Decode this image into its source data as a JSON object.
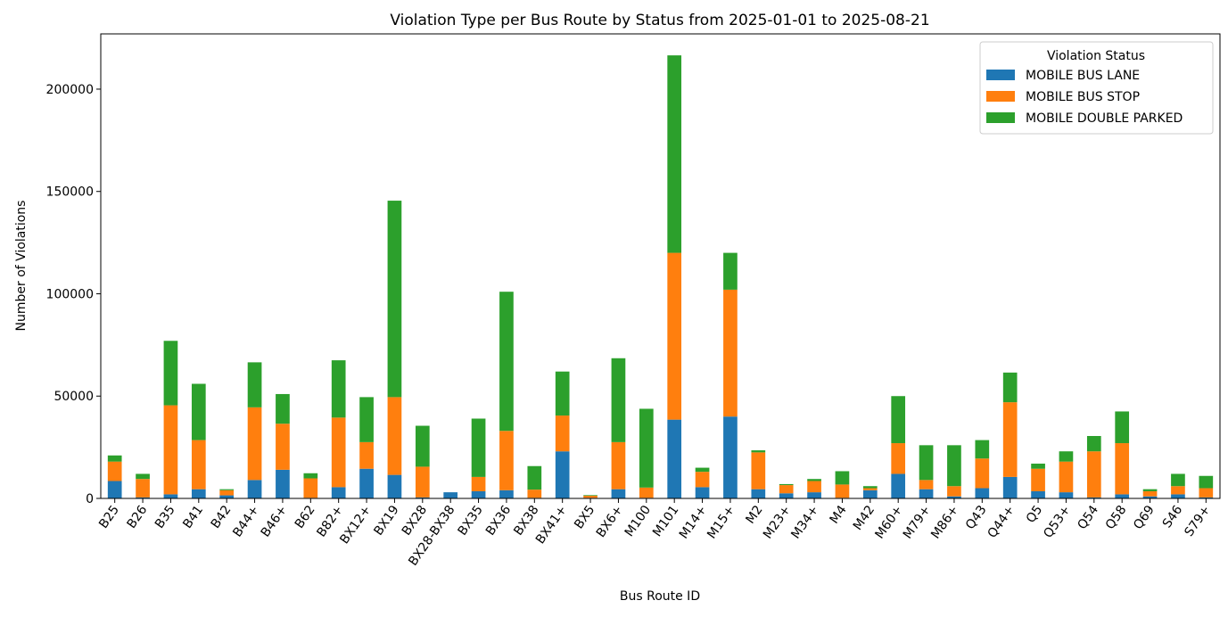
{
  "chart_data": {
    "type": "bar",
    "stacked": true,
    "title": "Violation Type per Bus Route by Status from 2025-01-01 to 2025-08-21",
    "xlabel": "Bus Route ID",
    "ylabel": "Number of Violations",
    "ylim": [
      0,
      227000
    ],
    "yticks": [
      0,
      50000,
      100000,
      150000,
      200000
    ],
    "ytick_labels": [
      "0",
      "50000",
      "100000",
      "150000",
      "200000"
    ],
    "grid": false,
    "legend": {
      "title": "Violation Status",
      "placement": "top-right"
    },
    "categories": [
      "B25",
      "B26",
      "B35",
      "B41",
      "B42",
      "B44+",
      "B46+",
      "B62",
      "B82+",
      "BX12+",
      "BX19",
      "BX28",
      "BX28-BX38",
      "BX35",
      "BX36",
      "BX38",
      "BX41+",
      "BX5",
      "BX6+",
      "M100",
      "M101",
      "M14+",
      "M15+",
      "M2",
      "M23+",
      "M34+",
      "M4",
      "M42",
      "M60+",
      "M79+",
      "M86+",
      "Q43",
      "Q44+",
      "Q5",
      "Q53+",
      "Q54",
      "Q58",
      "Q69",
      "S46",
      "S79+"
    ],
    "series": [
      {
        "name": "MOBILE BUS LANE",
        "color": "#1f77b4",
        "values": [
          8500,
          500,
          2000,
          4500,
          1500,
          9000,
          14000,
          300,
          5500,
          14500,
          11500,
          500,
          3000,
          3500,
          4000,
          300,
          23000,
          300,
          4500,
          300,
          38500,
          5500,
          40000,
          4500,
          2500,
          3000,
          300,
          4000,
          12000,
          4500,
          1000,
          5000,
          10500,
          3500,
          3000,
          500,
          2000,
          1000,
          2000,
          500
        ]
      },
      {
        "name": "MOBILE BUS STOP",
        "color": "#ff7f0e",
        "values": [
          9500,
          9000,
          43500,
          24000,
          2500,
          35500,
          22500,
          9500,
          34000,
          13000,
          38000,
          15000,
          0,
          7000,
          29000,
          4000,
          17500,
          1000,
          23000,
          5000,
          81500,
          7500,
          62000,
          18000,
          4000,
          5500,
          6500,
          1000,
          15000,
          4500,
          5000,
          14500,
          36500,
          11000,
          15000,
          22500,
          25000,
          2500,
          4000,
          4500
        ]
      },
      {
        "name": "MOBILE DOUBLE PARKED",
        "color": "#2ca02c",
        "values": [
          3000,
          2500,
          31500,
          27500,
          500,
          22000,
          14500,
          2500,
          28000,
          22000,
          96000,
          20000,
          0,
          28500,
          68000,
          11500,
          21500,
          300,
          41000,
          38500,
          96500,
          2000,
          18000,
          1000,
          500,
          1000,
          6500,
          1000,
          23000,
          17000,
          20000,
          9000,
          14500,
          2500,
          5000,
          7500,
          15500,
          1000,
          6000,
          6000
        ]
      }
    ]
  }
}
